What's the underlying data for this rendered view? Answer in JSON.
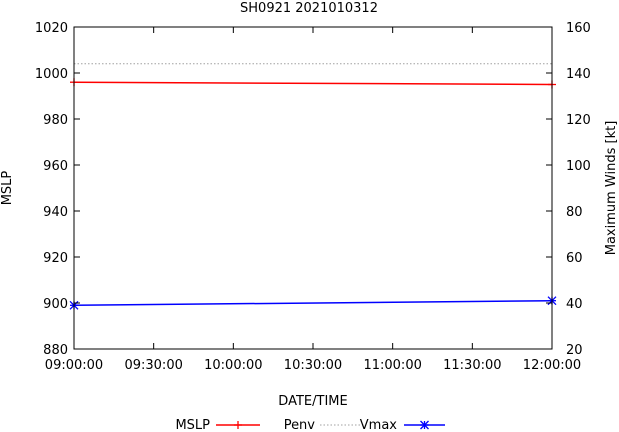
{
  "chart_data": {
    "type": "line",
    "title": "SH0921 2021010312",
    "xlabel": "DATE/TIME",
    "ylabel_left": "MSLP",
    "ylabel_right": "Maximum Winds [kt]",
    "x_ticks": [
      "09:00:00",
      "09:30:00",
      "10:00:00",
      "10:30:00",
      "11:00:00",
      "11:30:00",
      "12:00:00"
    ],
    "x_range_hours": [
      0,
      3
    ],
    "ylim_left": [
      880,
      1020
    ],
    "yticks_left": [
      880,
      900,
      920,
      940,
      960,
      980,
      1000,
      1020
    ],
    "ylim_right": [
      20,
      160
    ],
    "yticks_right": [
      20,
      40,
      60,
      80,
      100,
      120,
      140,
      160
    ],
    "legend_position": "bottom",
    "series": [
      {
        "name": "MSLP",
        "axis": "left",
        "color": "#ff0000",
        "marker": "plus",
        "dash": "solid",
        "x": [
          0,
          3
        ],
        "values": [
          996,
          995
        ]
      },
      {
        "name": "Penv",
        "axis": "left",
        "color": "#a0a0a0",
        "marker": "none",
        "dash": "dotted",
        "x": [
          0,
          3
        ],
        "values": [
          1004,
          1004
        ]
      },
      {
        "name": "Vmax",
        "axis": "right",
        "color": "#0000ff",
        "marker": "star",
        "dash": "solid",
        "x": [
          0,
          3
        ],
        "values": [
          39,
          41
        ]
      }
    ]
  }
}
